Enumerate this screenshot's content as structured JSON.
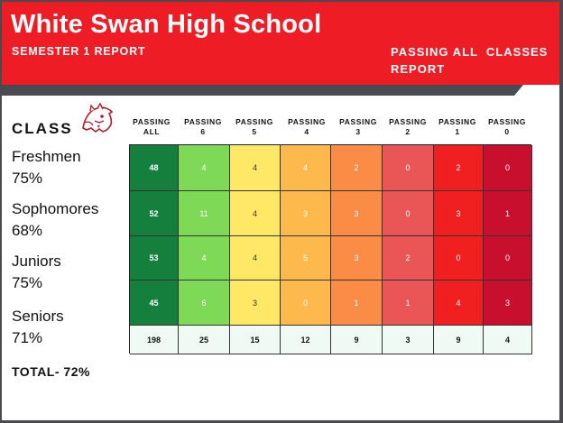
{
  "header": {
    "title": "White Swan High School",
    "subtitle_left": "SEMESTER 1 REPORT",
    "subtitle_right_line1": "PASSING ALL  CLASSES",
    "subtitle_right_line2": "REPORT"
  },
  "class_heading": "CLASS",
  "mascot_icon": "cougar-logo-icon",
  "columns": [
    {
      "line1": "PASSING",
      "line2": "ALL"
    },
    {
      "line1": "PASSING",
      "line2": "6"
    },
    {
      "line1": "PASSING",
      "line2": "5"
    },
    {
      "line1": "PASSING",
      "line2": "4"
    },
    {
      "line1": "PASSING",
      "line2": "3"
    },
    {
      "line1": "PASSING",
      "line2": "2"
    },
    {
      "line1": "PASSING",
      "line2": "1"
    },
    {
      "line1": "PASSING",
      "line2": "0"
    }
  ],
  "column_colors": [
    "#15803d",
    "#7ed957",
    "#ffe866",
    "#fdb94c",
    "#fb8c45",
    "#ea5656",
    "#f02020",
    "#c8102e"
  ],
  "rows": [
    {
      "name": "Freshmen",
      "percent": "75%",
      "values": [
        "48",
        "4",
        "4",
        "4",
        "2",
        "0",
        "2",
        "0"
      ]
    },
    {
      "name": "Sophomores",
      "percent": "68%",
      "values": [
        "52",
        "11",
        "4",
        "3",
        "3",
        "0",
        "3",
        "1"
      ]
    },
    {
      "name": "Juniors",
      "percent": "75%",
      "values": [
        "53",
        "4",
        "4",
        "5",
        "3",
        "2",
        "0",
        "0"
      ]
    },
    {
      "name": "Seniors",
      "percent": "71%",
      "values": [
        "45",
        "6",
        "3",
        "0",
        "1",
        "1",
        "4",
        "3"
      ]
    }
  ],
  "totals": [
    "198",
    "25",
    "15",
    "12",
    "9",
    "3",
    "9",
    "4"
  ],
  "total_label": "TOTAL- 72%"
}
